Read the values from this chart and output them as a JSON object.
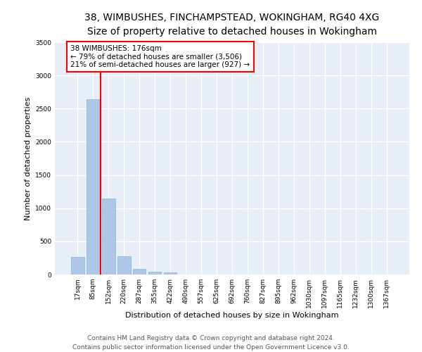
{
  "title_line1": "38, WIMBUSHES, FINCHAMPSTEAD, WOKINGHAM, RG40 4XG",
  "title_line2": "Size of property relative to detached houses in Wokingham",
  "xlabel": "Distribution of detached houses by size in Wokingham",
  "ylabel": "Number of detached properties",
  "footer_line1": "Contains HM Land Registry data © Crown copyright and database right 2024.",
  "footer_line2": "Contains public sector information licensed under the Open Government Licence v3.0.",
  "bar_labels": [
    "17sqm",
    "85sqm",
    "152sqm",
    "220sqm",
    "287sqm",
    "355sqm",
    "422sqm",
    "490sqm",
    "557sqm",
    "625sqm",
    "692sqm",
    "760sqm",
    "827sqm",
    "895sqm",
    "962sqm",
    "1030sqm",
    "1097sqm",
    "1165sqm",
    "1232sqm",
    "1300sqm",
    "1367sqm"
  ],
  "bar_values": [
    270,
    2640,
    1150,
    280,
    90,
    45,
    35,
    0,
    0,
    0,
    0,
    0,
    0,
    0,
    0,
    0,
    0,
    0,
    0,
    0,
    0
  ],
  "bar_color": "#aec6e8",
  "bar_edge_color": "#8ab4d8",
  "annotation_text": "38 WIMBUSHES: 176sqm\n← 79% of detached houses are smaller (3,506)\n21% of semi-detached houses are larger (927) →",
  "annotation_box_color": "white",
  "annotation_box_edge_color": "red",
  "vline_color": "red",
  "vline_lw": 1.5,
  "vline_pos": 1.5,
  "ylim": [
    0,
    3500
  ],
  "yticks": [
    0,
    500,
    1000,
    1500,
    2000,
    2500,
    3000,
    3500
  ],
  "background_color": "#e8eef8",
  "grid_color": "white",
  "title_fontsize": 10,
  "subtitle_fontsize": 9,
  "axis_label_fontsize": 8,
  "tick_fontsize": 6.5,
  "annotation_fontsize": 7.5,
  "footer_fontsize": 6.5
}
